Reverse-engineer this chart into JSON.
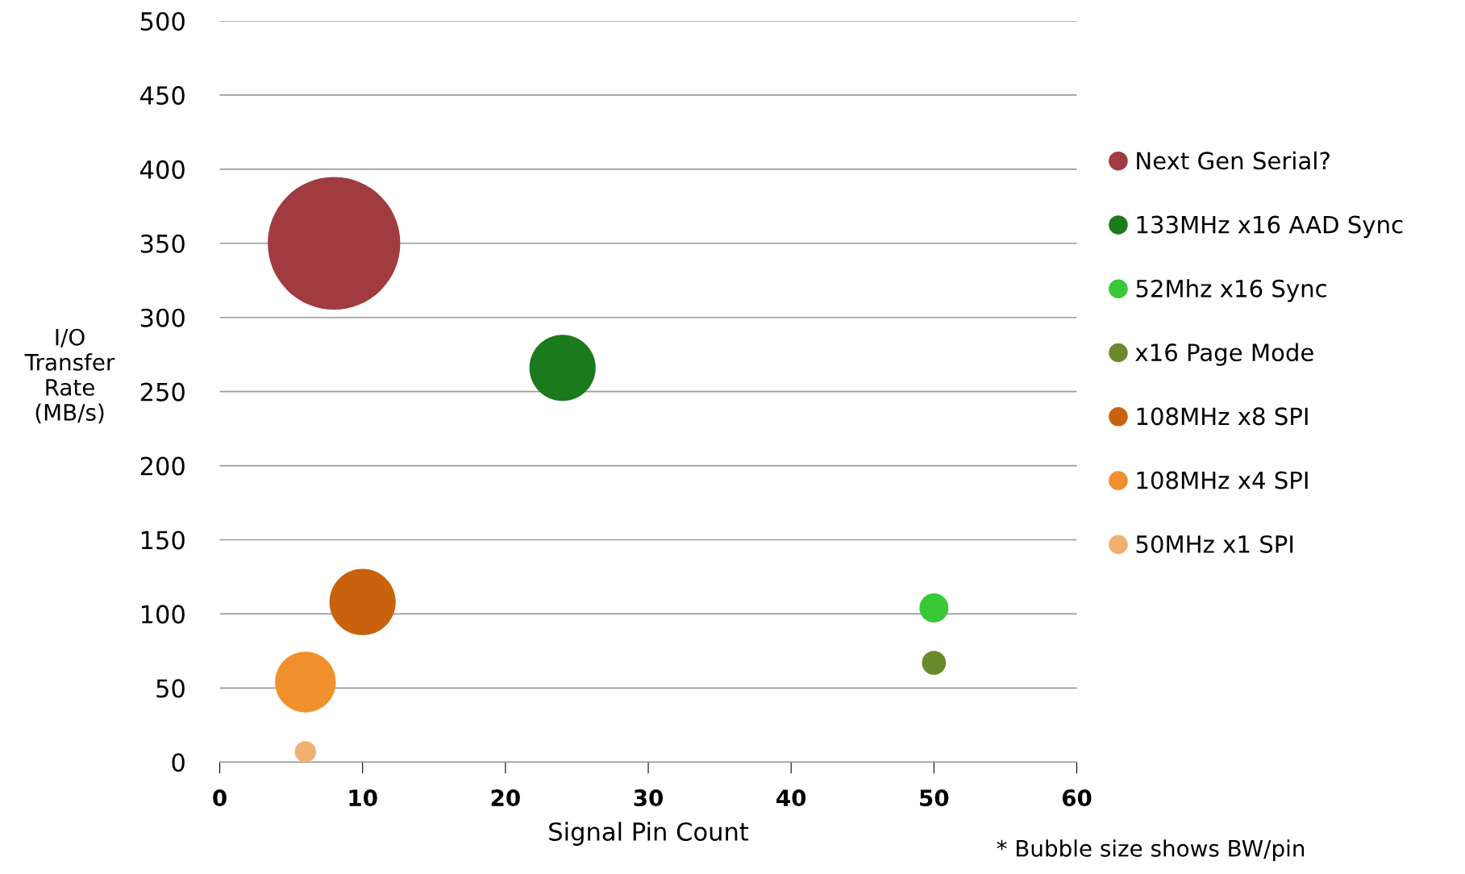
{
  "chart_data": {
    "type": "bubble",
    "xlabel": "Signal Pin Count",
    "ylabel": "I/O\nTransfer\nRate\n(MB/s)",
    "xlim": [
      0,
      60
    ],
    "xticks": [
      0,
      10,
      20,
      30,
      40,
      50,
      60
    ],
    "ylim": [
      0,
      500
    ],
    "yticks": [
      0,
      50,
      100,
      150,
      200,
      250,
      300,
      350,
      400,
      450,
      500
    ],
    "grid": "y",
    "legend": "right",
    "series": [
      {
        "name": "Next Gen Serial?",
        "color": "#a03c40",
        "x": [
          8
        ],
        "values": [
          350
        ],
        "sizes": [
          1
        ]
      },
      {
        "name": "133MHz x16 AAD Sync",
        "color": "#1b7a1b",
        "x": [
          24
        ],
        "values": [
          266
        ],
        "sizes": [
          0.25
        ]
      },
      {
        "name": "52Mhz x16 Sync",
        "color": "#38c838",
        "x": [
          50
        ],
        "values": [
          104
        ],
        "sizes": [
          0.048
        ]
      },
      {
        "name": "x16 Page Mode",
        "color": "#6b8a2c",
        "x": [
          50
        ],
        "values": [
          67
        ],
        "sizes": [
          0.033
        ]
      },
      {
        "name": "108MHz x8 SPI",
        "color": "#c8620c",
        "x": [
          10
        ],
        "values": [
          108
        ],
        "sizes": [
          0.25
        ]
      },
      {
        "name": "108MHz x4 SPI",
        "color": "#f0902c",
        "x": [
          6
        ],
        "values": [
          54
        ],
        "sizes": [
          0.21
        ]
      },
      {
        "name": "50MHz x1 SPI",
        "color": "#f2b070",
        "x": [
          6
        ],
        "values": [
          7
        ],
        "sizes": [
          0.026
        ]
      }
    ],
    "annotations": [
      "* Bubble size shows BW/pin"
    ]
  }
}
